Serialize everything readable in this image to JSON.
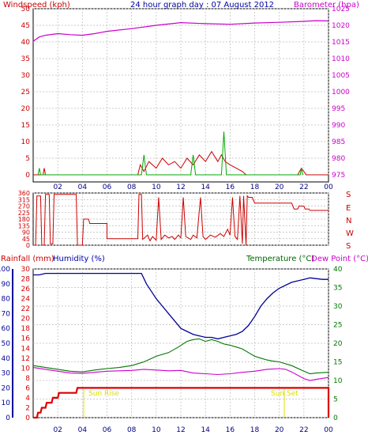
{
  "header": {
    "windspeed_label": "Windspeed (kph)",
    "title": "24 hour graph day : 07 August 2012",
    "barometer_label": "Barometer (hpa)"
  },
  "direction_labels": [
    "S",
    "E",
    "N",
    "W",
    "S"
  ],
  "bottom_labels": {
    "rainfall": "Rainfall (mm)",
    "humidity": "Humidity (%)",
    "temperature": "Temperature (°C)",
    "dewpoint": "Dew Point (°C)",
    "sun_rise": "Sun Rise",
    "sun_set": "Sun Set"
  },
  "colors": {
    "wind": "#cc0000",
    "gust": "#00aa00",
    "avg": "#0000cc",
    "baro": "#cc00cc",
    "rain": "#dd0000",
    "humidity": "#000099",
    "temp": "#007700",
    "dew": "#cc00cc",
    "sun": "#dddd00",
    "grid": "#bbbbbb"
  },
  "chart_data": [
    {
      "type": "line",
      "title": "24 hour graph day : 07 August 2012",
      "x_ticks": [
        "02",
        "04",
        "06",
        "08",
        "10",
        "12",
        "14",
        "16",
        "18",
        "20",
        "22",
        "00"
      ],
      "ylim": [
        0,
        50
      ],
      "y_ticks": [
        0,
        5,
        10,
        15,
        20,
        25,
        30,
        35,
        40,
        45,
        50
      ],
      "y2lim": [
        975,
        1025
      ],
      "y2_ticks": [
        975,
        980,
        985,
        990,
        995,
        1000,
        1005,
        1010,
        1015,
        1020,
        1025
      ],
      "series": [
        {
          "name": "Windspeed (kph)",
          "axis": "left",
          "points": [
            [
              0,
              0
            ],
            [
              0.8,
              0
            ],
            [
              0.9,
              2
            ],
            [
              1,
              0
            ],
            [
              8.5,
              0
            ],
            [
              8.7,
              3
            ],
            [
              9,
              1
            ],
            [
              9.4,
              4
            ],
            [
              10,
              2
            ],
            [
              10.5,
              5
            ],
            [
              11,
              3
            ],
            [
              11.5,
              4
            ],
            [
              12,
              2
            ],
            [
              12.5,
              5
            ],
            [
              13,
              3
            ],
            [
              13.5,
              6
            ],
            [
              14,
              4
            ],
            [
              14.5,
              7
            ],
            [
              15,
              4
            ],
            [
              15.3,
              6
            ],
            [
              15.6,
              4
            ],
            [
              16,
              3
            ],
            [
              16.5,
              2
            ],
            [
              17,
              1
            ],
            [
              17.3,
              0
            ],
            [
              21.5,
              0
            ],
            [
              21.8,
              2
            ],
            [
              22.2,
              0
            ],
            [
              24,
              0
            ]
          ]
        },
        {
          "name": "gust",
          "axis": "left",
          "points": [
            [
              0.4,
              0
            ],
            [
              0.5,
              2
            ],
            [
              0.6,
              0
            ],
            [
              8.8,
              0
            ],
            [
              9,
              6
            ],
            [
              9.2,
              0
            ],
            [
              12.8,
              0
            ],
            [
              13,
              6
            ],
            [
              13.2,
              0
            ],
            [
              15.3,
              0
            ],
            [
              15.5,
              13
            ],
            [
              15.7,
              0
            ],
            [
              21.7,
              0
            ],
            [
              21.8,
              2
            ],
            [
              21.9,
              0
            ]
          ]
        },
        {
          "name": "Barometer (hpa)",
          "axis": "right",
          "points": [
            [
              0,
              1015.2
            ],
            [
              0.5,
              1016.5
            ],
            [
              1,
              1017
            ],
            [
              2,
              1017.5
            ],
            [
              3,
              1017.2
            ],
            [
              4,
              1017
            ],
            [
              5,
              1017.5
            ],
            [
              6,
              1018.2
            ],
            [
              8,
              1019
            ],
            [
              10,
              1020
            ],
            [
              12,
              1020.8
            ],
            [
              14,
              1020.5
            ],
            [
              16,
              1020.3
            ],
            [
              18,
              1020.7
            ],
            [
              20,
              1020.9
            ],
            [
              22,
              1021.2
            ],
            [
              23,
              1021.4
            ],
            [
              24,
              1021.3
            ]
          ]
        }
      ]
    },
    {
      "type": "line",
      "ylim": [
        0,
        360
      ],
      "y_ticks": [
        0,
        45,
        90,
        135,
        180,
        225,
        270,
        315,
        360
      ],
      "series": [
        {
          "name": "Wind direction",
          "points": [
            [
              0,
              0
            ],
            [
              0.2,
              0
            ],
            [
              0.3,
              340
            ],
            [
              0.6,
              340
            ],
            [
              0.7,
              0
            ],
            [
              0.9,
              0
            ],
            [
              1,
              350
            ],
            [
              1.3,
              350
            ],
            [
              1.4,
              10
            ],
            [
              1.6,
              10
            ],
            [
              1.7,
              350
            ],
            [
              2,
              350
            ],
            [
              3.5,
              350
            ],
            [
              3.6,
              0
            ],
            [
              4,
              0
            ],
            [
              4.1,
              180
            ],
            [
              4.5,
              180
            ],
            [
              4.6,
              150
            ],
            [
              6,
              150
            ],
            [
              6,
              45
            ],
            [
              8.5,
              45
            ],
            [
              8.6,
              350
            ],
            [
              8.8,
              350
            ],
            [
              8.9,
              40
            ],
            [
              9.3,
              70
            ],
            [
              9.5,
              30
            ],
            [
              9.7,
              60
            ],
            [
              10,
              35
            ],
            [
              10.2,
              330
            ],
            [
              10.4,
              40
            ],
            [
              10.7,
              70
            ],
            [
              11,
              50
            ],
            [
              11.3,
              60
            ],
            [
              11.5,
              40
            ],
            [
              11.8,
              70
            ],
            [
              12,
              50
            ],
            [
              12.2,
              330
            ],
            [
              12.4,
              60
            ],
            [
              12.8,
              40
            ],
            [
              13,
              70
            ],
            [
              13.3,
              50
            ],
            [
              13.6,
              330
            ],
            [
              13.8,
              60
            ],
            [
              14,
              40
            ],
            [
              14.4,
              70
            ],
            [
              14.8,
              55
            ],
            [
              15.2,
              80
            ],
            [
              15.5,
              60
            ],
            [
              15.8,
              110
            ],
            [
              16,
              70
            ],
            [
              16.2,
              330
            ],
            [
              16.4,
              60
            ],
            [
              16.6,
              40
            ],
            [
              16.8,
              340
            ],
            [
              17,
              10
            ],
            [
              17.1,
              340
            ],
            [
              17.3,
              0
            ],
            [
              17.4,
              340
            ],
            [
              17.5,
              330
            ],
            [
              17.8,
              330
            ],
            [
              18,
              290
            ],
            [
              21,
              290
            ],
            [
              21.2,
              250
            ],
            [
              21.5,
              250
            ],
            [
              21.6,
              270
            ],
            [
              22,
              270
            ],
            [
              22.1,
              250
            ],
            [
              22.4,
              250
            ],
            [
              22.5,
              240
            ],
            [
              24,
              240
            ]
          ]
        }
      ]
    },
    {
      "type": "line",
      "ylim": [
        0,
        40
      ],
      "y_ticks": [
        0,
        5,
        10,
        15,
        20,
        25,
        30,
        35,
        40
      ],
      "y_left_ticks": [
        0,
        10,
        20,
        30,
        40,
        50,
        60,
        70,
        80,
        90,
        100
      ],
      "y_rain_ticks": [
        0,
        2,
        4,
        6,
        8,
        10,
        12,
        14,
        16,
        18,
        20,
        22,
        24,
        26,
        28,
        30
      ],
      "series": [
        {
          "name": "Humidity (%)",
          "axis": "humidity",
          "points": [
            [
              0,
              96
            ],
            [
              0.5,
              96
            ],
            [
              1,
              97
            ],
            [
              8.8,
              97
            ],
            [
              9.2,
              90
            ],
            [
              9.6,
              85
            ],
            [
              10,
              80
            ],
            [
              10.5,
              75
            ],
            [
              11,
              70
            ],
            [
              11.6,
              64
            ],
            [
              12,
              60
            ],
            [
              12.5,
              58
            ],
            [
              13,
              56
            ],
            [
              13.5,
              55
            ],
            [
              14,
              54
            ],
            [
              14.5,
              54
            ],
            [
              15,
              53
            ],
            [
              15.5,
              54
            ],
            [
              16,
              55
            ],
            [
              16.5,
              56
            ],
            [
              17,
              58
            ],
            [
              17.5,
              62
            ],
            [
              18,
              68
            ],
            [
              18.5,
              75
            ],
            [
              19,
              80
            ],
            [
              19.5,
              84
            ],
            [
              20,
              87
            ],
            [
              21,
              91
            ],
            [
              22,
              93
            ],
            [
              22.5,
              94
            ],
            [
              23.5,
              93
            ],
            [
              24,
              93
            ]
          ]
        },
        {
          "name": "Temperature (°C)",
          "axis": "temp",
          "points": [
            [
              0,
              14
            ],
            [
              1,
              13.5
            ],
            [
              2,
              13
            ],
            [
              3,
              12.5
            ],
            [
              4,
              12.3
            ],
            [
              5,
              12.8
            ],
            [
              6,
              13.2
            ],
            [
              7,
              13.5
            ],
            [
              8,
              14
            ],
            [
              9,
              15
            ],
            [
              10,
              16.5
            ],
            [
              11,
              17.5
            ],
            [
              11.8,
              19
            ],
            [
              12.5,
              20.5
            ],
            [
              13,
              21
            ],
            [
              13.5,
              21.2
            ],
            [
              14,
              20.5
            ],
            [
              14.5,
              21
            ],
            [
              15,
              20.5
            ],
            [
              15.5,
              19.8
            ],
            [
              16,
              19.5
            ],
            [
              16.5,
              19
            ],
            [
              17,
              18.5
            ],
            [
              17.5,
              17.5
            ],
            [
              18,
              16.5
            ],
            [
              18.5,
              16
            ],
            [
              19,
              15.5
            ],
            [
              19.5,
              15.2
            ],
            [
              20,
              15
            ],
            [
              21,
              14
            ],
            [
              22,
              12.5
            ],
            [
              22.5,
              11.8
            ],
            [
              23,
              12
            ],
            [
              24,
              12.2
            ]
          ]
        },
        {
          "name": "Dew Point (°C)",
          "axis": "temp",
          "points": [
            [
              0,
              13.5
            ],
            [
              1,
              13
            ],
            [
              2,
              12.5
            ],
            [
              3,
              12
            ],
            [
              4,
              11.9
            ],
            [
              5,
              12.2
            ],
            [
              6,
              12.5
            ],
            [
              7,
              12.6
            ],
            [
              8,
              12.7
            ],
            [
              9,
              13
            ],
            [
              10,
              12.8
            ],
            [
              11,
              12.6
            ],
            [
              12,
              12.7
            ],
            [
              13,
              12
            ],
            [
              14,
              11.8
            ],
            [
              15,
              11.6
            ],
            [
              16,
              11.8
            ],
            [
              17,
              12.2
            ],
            [
              18,
              12.5
            ],
            [
              19,
              13
            ],
            [
              20,
              13.2
            ],
            [
              20.5,
              13
            ],
            [
              21,
              12.3
            ],
            [
              22,
              10.5
            ],
            [
              22.5,
              10
            ],
            [
              23,
              10.3
            ],
            [
              24,
              10.8
            ]
          ]
        },
        {
          "name": "Rainfall (mm)",
          "axis": "rain",
          "points": [
            [
              0,
              0
            ],
            [
              0.3,
              0
            ],
            [
              0.4,
              1
            ],
            [
              0.6,
              1
            ],
            [
              0.7,
              2
            ],
            [
              1,
              2
            ],
            [
              1.1,
              3
            ],
            [
              1.5,
              3
            ],
            [
              1.6,
              4
            ],
            [
              2,
              4
            ],
            [
              2.1,
              5
            ],
            [
              3.5,
              5
            ],
            [
              3.6,
              6
            ],
            [
              7,
              6
            ],
            [
              24,
              6
            ],
            [
              24,
              0
            ]
          ]
        }
      ]
    }
  ]
}
